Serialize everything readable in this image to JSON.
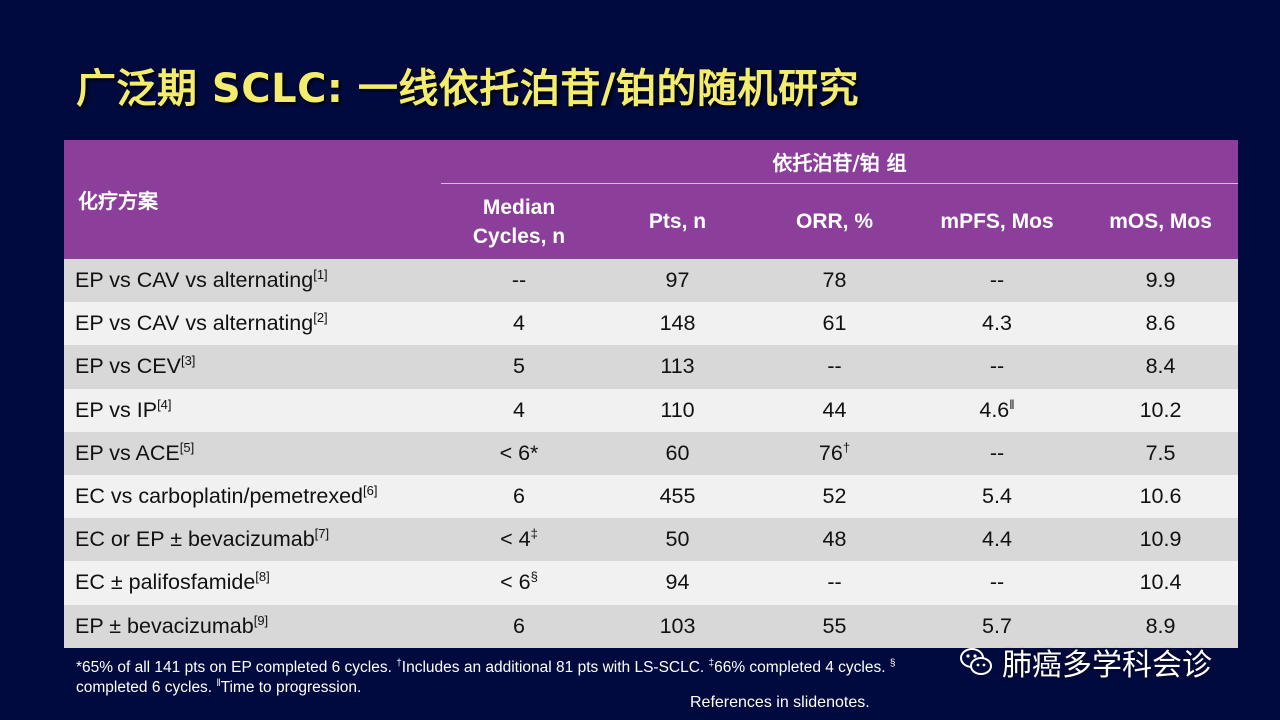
{
  "title": "广泛期 SCLC: 一线依托泊苷/铂的随机研究",
  "table": {
    "scheme_header": "化疗方案",
    "group_header": "依托泊苷/铂 组",
    "sub_headers": [
      "Median Cycles, n",
      "Pts, n",
      "ORR, %",
      "mPFS, Mos",
      "mOS, Mos"
    ],
    "rows": [
      {
        "regimen": "EP vs CAV vs alternating",
        "ref": "[1]",
        "cycles": "--",
        "cycles_sup": "",
        "pts": "97",
        "orr": "78",
        "orr_sup": "",
        "mpfs": "--",
        "mpfs_sup": "",
        "mos": "9.9"
      },
      {
        "regimen": "EP vs CAV vs alternating",
        "ref": "[2]",
        "cycles": "4",
        "cycles_sup": "",
        "pts": "148",
        "orr": "61",
        "orr_sup": "",
        "mpfs": "4.3",
        "mpfs_sup": "",
        "mos": "8.6"
      },
      {
        "regimen": "EP vs CEV",
        "ref": "[3]",
        "cycles": "5",
        "cycles_sup": "",
        "pts": "113",
        "orr": "--",
        "orr_sup": "",
        "mpfs": "--",
        "mpfs_sup": "",
        "mos": "8.4"
      },
      {
        "regimen": "EP vs IP",
        "ref": "[4]",
        "cycles": "4",
        "cycles_sup": "",
        "pts": "110",
        "orr": "44",
        "orr_sup": "",
        "mpfs": "4.6",
        "mpfs_sup": "ǁ",
        "mos": "10.2"
      },
      {
        "regimen": "EP vs ACE",
        "ref": "[5]",
        "cycles": "< 6*",
        "cycles_sup": "",
        "pts": "60",
        "orr": "76",
        "orr_sup": "†",
        "mpfs": "--",
        "mpfs_sup": "",
        "mos": "7.5"
      },
      {
        "regimen": "EC vs carboplatin/pemetrexed",
        "ref": "[6]",
        "cycles": "6",
        "cycles_sup": "",
        "pts": "455",
        "orr": "52",
        "orr_sup": "",
        "mpfs": "5.4",
        "mpfs_sup": "",
        "mos": "10.6"
      },
      {
        "regimen": "EC or EP ± bevacizumab",
        "ref": "[7]",
        "cycles": "< 4",
        "cycles_sup": "‡",
        "pts": "50",
        "orr": "48",
        "orr_sup": "",
        "mpfs": "4.4",
        "mpfs_sup": "",
        "mos": "10.9"
      },
      {
        "regimen": "EC ± palifosfamide",
        "ref": "[8]",
        "cycles": "< 6",
        "cycles_sup": "§",
        "pts": "94",
        "orr": "--",
        "orr_sup": "",
        "mpfs": "--",
        "mpfs_sup": "",
        "mos": "10.4"
      },
      {
        "regimen": "EP ± bevacizumab",
        "ref": "[9]",
        "cycles": "6",
        "cycles_sup": "",
        "pts": "103",
        "orr": "55",
        "orr_sup": "",
        "mpfs": "5.7",
        "mpfs_sup": "",
        "mos": "8.9"
      }
    ]
  },
  "footnote": {
    "line1_a": "*65% of all 141 pts on EP completed 6 cycles. ",
    "sup1": "†",
    "line1_b": "Includes an additional 81 pts with LS-SCLC. ",
    "sup2": "‡",
    "line1_c": "66% completed 4 cycles. ",
    "sup3": "§",
    "line1_d": "",
    "line2_a": "completed 6 cycles. ",
    "sup4": "ǁ",
    "line2_b": "Time to progression."
  },
  "references": "References in slidenotes.",
  "watermark": {
    "text": "肺癌多学科会诊",
    "icon": "wechat-icon"
  },
  "colors": {
    "background": "#000a3e",
    "title": "#f4ec6c",
    "header": "#8c3f9a",
    "row_odd": "#d8d8d8",
    "row_even": "#f1f1f1"
  }
}
